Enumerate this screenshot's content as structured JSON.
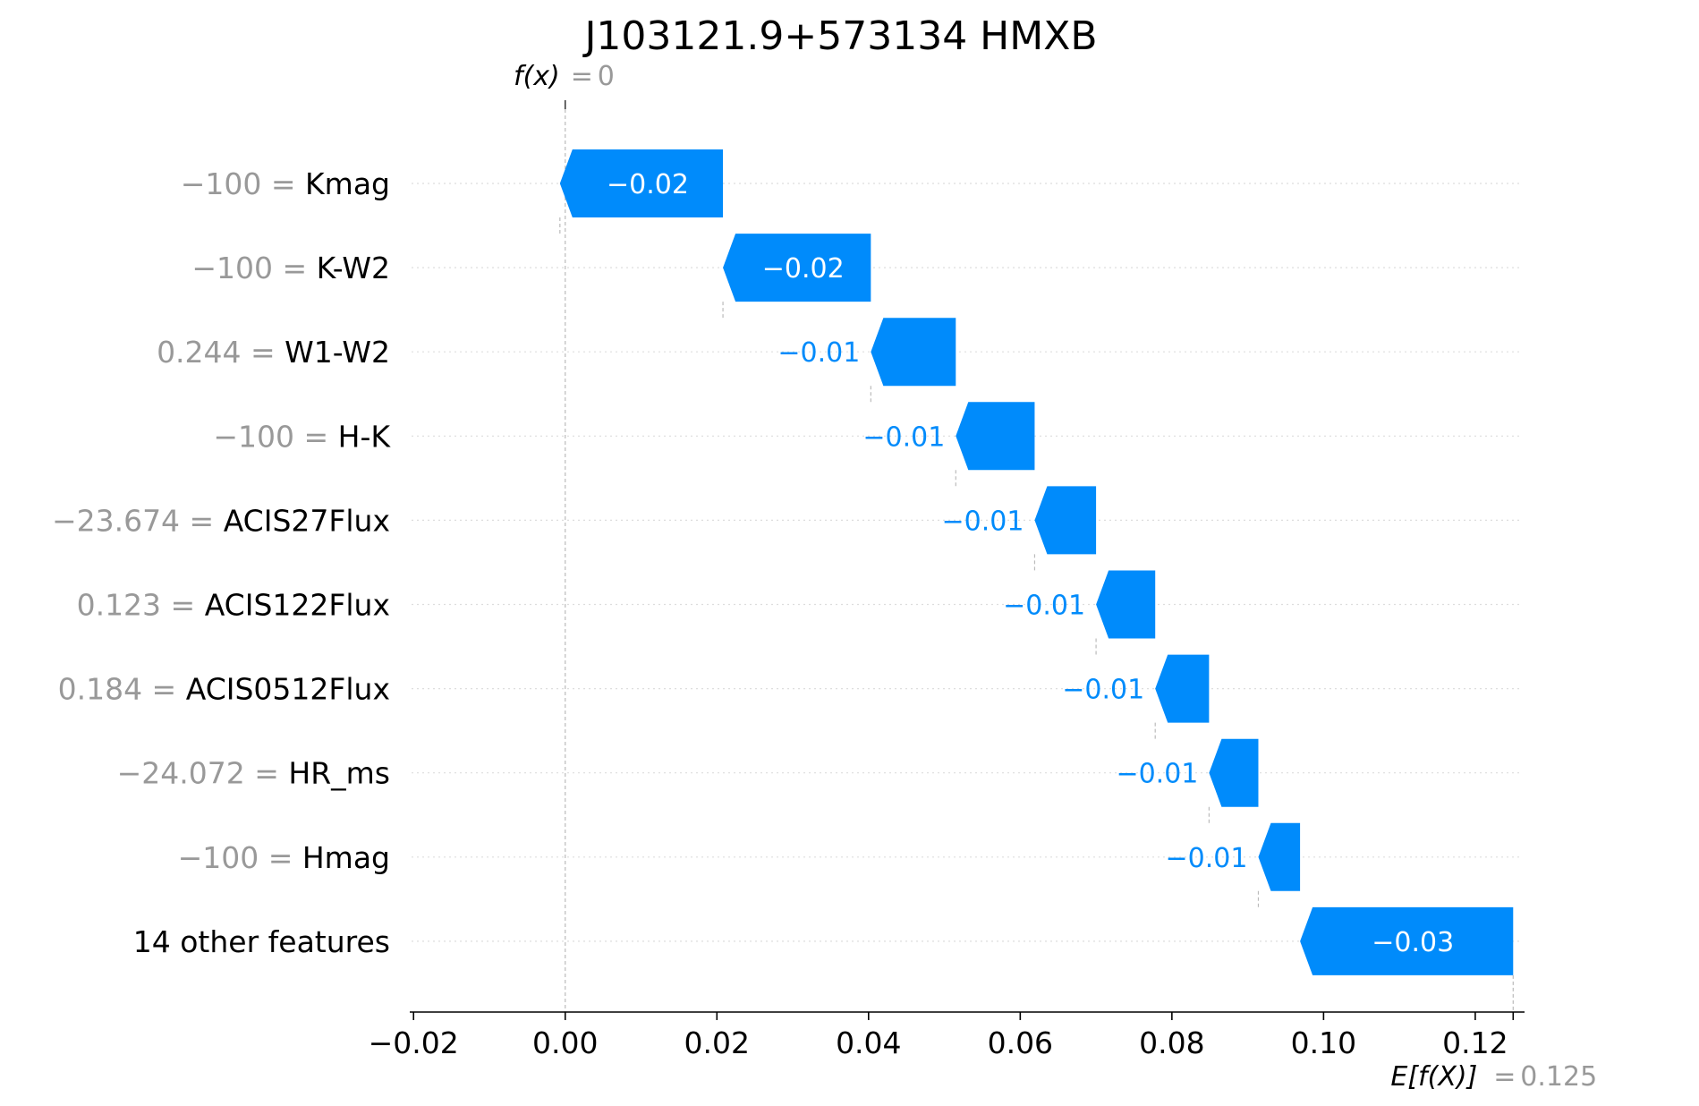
{
  "chart_data": {
    "type": "waterfall",
    "title": "J103121.9+573134 HMXB",
    "fx_label": "f(x)",
    "fx_value": "0",
    "fx": 0,
    "efx_label": "E[f(X)]",
    "efx_value": "0.125",
    "base_value": 0.125,
    "xlim": [
      -0.0205,
      0.1265
    ],
    "x_ticks": [
      -0.02,
      0.0,
      0.02,
      0.04,
      0.06,
      0.08,
      0.1,
      0.12
    ],
    "x_tick_labels": [
      "−0.02",
      "0.00",
      "0.02",
      "0.04",
      "0.06",
      "0.08",
      "0.10",
      "0.12"
    ],
    "features": [
      {
        "value": "−100",
        "name": "Kmag",
        "contribution": -0.0215,
        "label": "−0.02"
      },
      {
        "value": "−100",
        "name": "K-W2",
        "contribution": -0.0195,
        "label": "−0.02"
      },
      {
        "value": "0.244",
        "name": "W1-W2",
        "contribution": -0.0112,
        "label": "−0.01"
      },
      {
        "value": "−100",
        "name": "H-K",
        "contribution": -0.0104,
        "label": "−0.01"
      },
      {
        "value": "−23.674",
        "name": "ACIS27Flux",
        "contribution": -0.0081,
        "label": "−0.01"
      },
      {
        "value": "0.123",
        "name": "ACIS122Flux",
        "contribution": -0.0078,
        "label": "−0.01"
      },
      {
        "value": "0.184",
        "name": "ACIS0512Flux",
        "contribution": -0.0071,
        "label": "−0.01"
      },
      {
        "value": "−24.072",
        "name": "HR_ms",
        "contribution": -0.0065,
        "label": "−0.01"
      },
      {
        "value": "−100",
        "name": "Hmag",
        "contribution": -0.0055,
        "label": "−0.01"
      },
      {
        "value": "",
        "name": "14 other features",
        "contribution": -0.0281,
        "label": "−0.03"
      }
    ],
    "colors": {
      "negative": "#008bfb",
      "muted_text": "#999999",
      "grid": "#cccccc"
    }
  }
}
